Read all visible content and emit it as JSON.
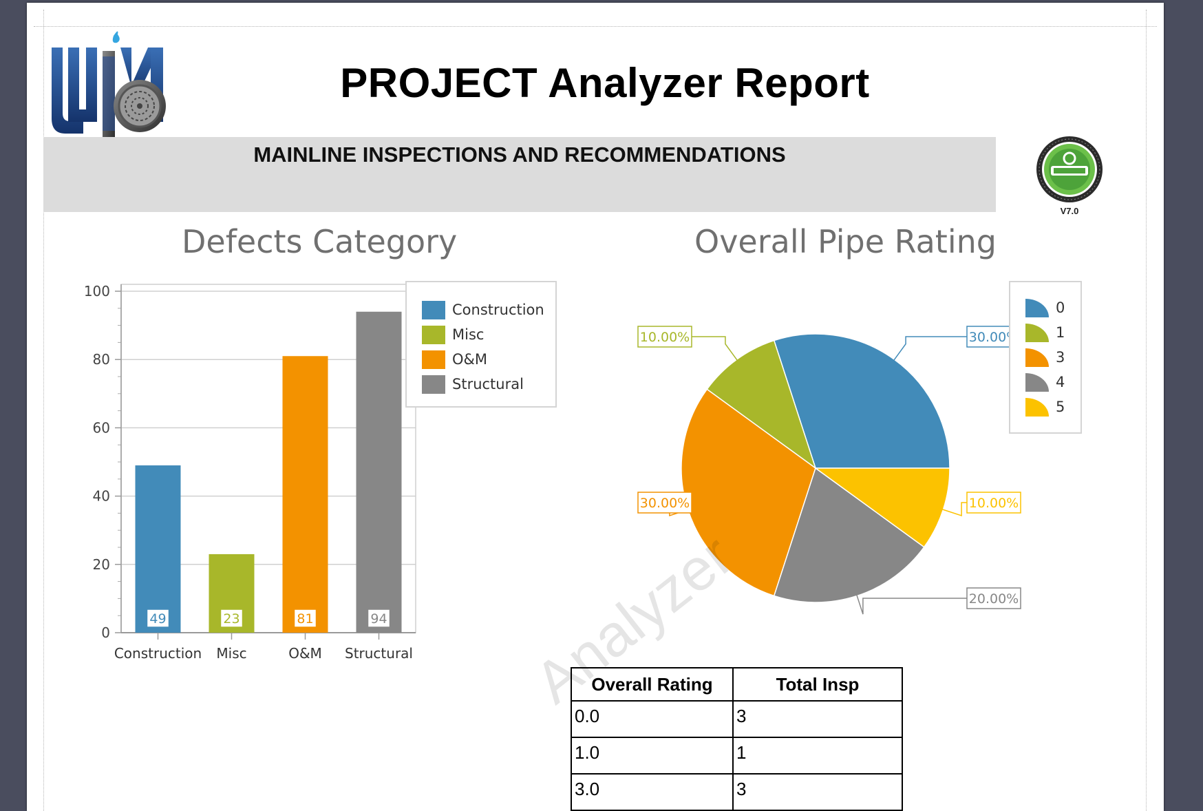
{
  "report": {
    "title": "PROJECT Analyzer Report",
    "section_heading": "MAINLINE INSPECTIONS AND RECOMMENDATIONS",
    "badge_version": "V7.0",
    "watermark": "Analyzer"
  },
  "chart_data": [
    {
      "type": "bar",
      "title": "Defects Category",
      "categories": [
        "Construction",
        "Misc",
        "O&M",
        "Structural"
      ],
      "values": [
        49,
        23,
        81,
        94
      ],
      "colors": [
        "#428bb9",
        "#a8b72a",
        "#f39200",
        "#878787"
      ],
      "ylim": [
        0,
        100
      ],
      "yticks": [
        "0",
        "20",
        "40",
        "60",
        "80",
        "100"
      ],
      "grid": true,
      "legend": {
        "position": "right",
        "entries": [
          "Construction",
          "Misc",
          "O&M",
          "Structural"
        ]
      }
    },
    {
      "type": "pie",
      "title": "Overall Pipe Rating",
      "slices": [
        {
          "label": "0",
          "value": 30,
          "display": "30.00%",
          "color": "#428bb9"
        },
        {
          "label": "1",
          "value": 10,
          "display": "10.00%",
          "color": "#a8b72a"
        },
        {
          "label": "3",
          "value": 30,
          "display": "30.00%",
          "color": "#f39200"
        },
        {
          "label": "4",
          "value": 20,
          "display": "20.00%",
          "color": "#878787"
        },
        {
          "label": "5",
          "value": 10,
          "display": "10.00%",
          "color": "#fcc200"
        }
      ],
      "legend": {
        "position": "right",
        "entries": [
          "0",
          "1",
          "3",
          "4",
          "5"
        ]
      }
    }
  ],
  "table": {
    "headers": [
      "Overall Rating",
      "Total Insp"
    ],
    "rows": [
      [
        "0.0",
        "3"
      ],
      [
        "1.0",
        "1"
      ],
      [
        "3.0",
        "3"
      ]
    ]
  }
}
